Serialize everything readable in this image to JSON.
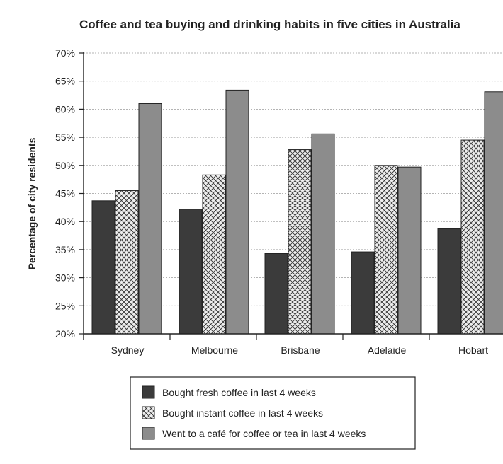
{
  "chart_data": {
    "type": "bar",
    "title": "Coffee and tea buying and drinking habits in five cities in Australia",
    "xlabel": "",
    "ylabel": "Percentage of city residents",
    "ylim": [
      20,
      70
    ],
    "yticks": [
      "20%",
      "25%",
      "30%",
      "35%",
      "40%",
      "45%",
      "50%",
      "55%",
      "60%",
      "65%",
      "70%"
    ],
    "grid": true,
    "legend_position": "bottom",
    "categories": [
      "Sydney",
      "Melbourne",
      "Brisbane",
      "Adelaide",
      "Hobart"
    ],
    "series": [
      {
        "name": "Bought fresh coffee in last 4 weeks",
        "style": "solid-dark",
        "color": "#3a3a3a",
        "values": [
          43.7,
          42.2,
          34.3,
          34.6,
          38.7
        ]
      },
      {
        "name": "Bought instant coffee in last 4 weeks",
        "style": "crosshatch",
        "color": "#e6e6e6",
        "values": [
          45.5,
          48.3,
          52.8,
          50.0,
          54.5
        ]
      },
      {
        "name": "Went to a café for coffee or tea in last 4 weeks",
        "style": "solid-gray",
        "color": "#8a8a8a",
        "values": [
          61.0,
          63.4,
          55.6,
          49.7,
          63.1
        ]
      }
    ]
  }
}
